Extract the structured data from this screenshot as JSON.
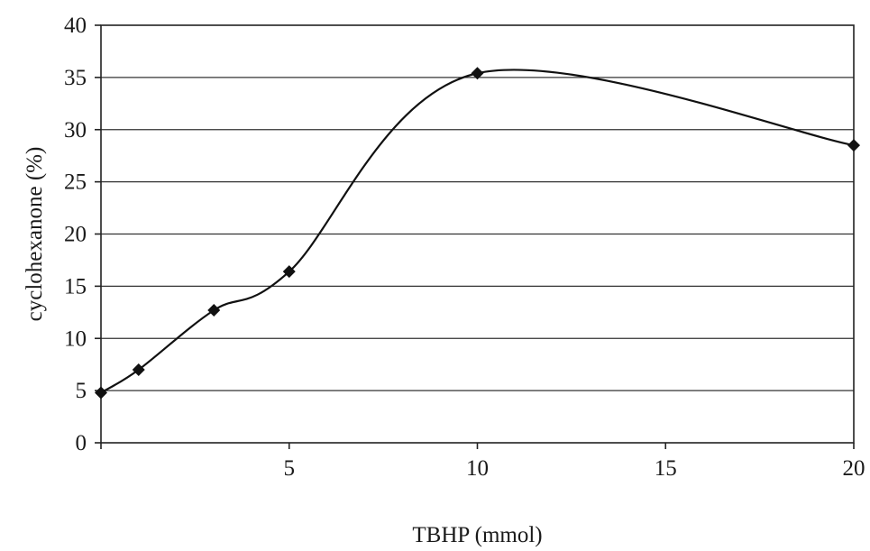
{
  "chart_data": {
    "type": "line",
    "xlabel": "TBHP (mmol)",
    "ylabel": "cyclohexanone (%)",
    "xlim": [
      0,
      20
    ],
    "ylim": [
      0,
      40
    ],
    "x_ticks": [
      "5",
      "10",
      "15",
      "20"
    ],
    "y_ticks": [
      "0",
      "5",
      "10",
      "15",
      "20",
      "25",
      "30",
      "35",
      "40"
    ],
    "grid": "horizontal",
    "smooth": true,
    "marker": "diamond",
    "line_color": "#111111",
    "series": [
      {
        "x": [
          0,
          1,
          3,
          5,
          10,
          20
        ],
        "values": [
          4.8,
          7.0,
          12.7,
          16.4,
          35.4,
          28.5
        ]
      }
    ]
  }
}
